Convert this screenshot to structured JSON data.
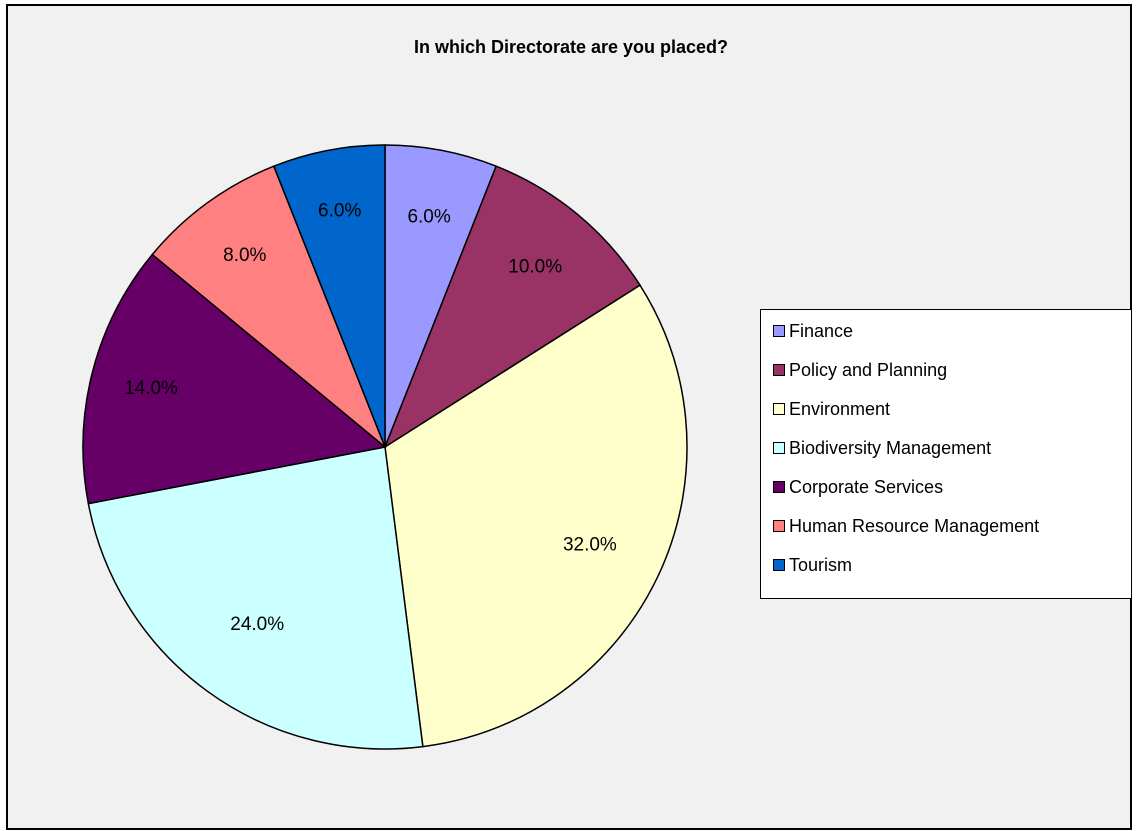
{
  "chart_data": {
    "type": "pie",
    "title": "In which Directorate are you placed?",
    "slices": [
      {
        "label": "Finance",
        "value": 6.0,
        "display": "6.0%",
        "color": "#9999ff"
      },
      {
        "label": "Policy and Planning",
        "value": 10.0,
        "display": "10.0%",
        "color": "#993366"
      },
      {
        "label": "Environment",
        "value": 32.0,
        "display": "32.0%",
        "color": "#ffffcc"
      },
      {
        "label": "Biodiversity Management",
        "value": 24.0,
        "display": "24.0%",
        "color": "#ccffff"
      },
      {
        "label": "Corporate Services",
        "value": 14.0,
        "display": "14.0%",
        "color": "#660066"
      },
      {
        "label": "Human Resource Management",
        "value": 8.0,
        "display": "8.0%",
        "color": "#ff8080"
      },
      {
        "label": "Tourism",
        "value": 6.0,
        "display": "6.0%",
        "color": "#0066cc"
      }
    ],
    "legend_position": "right"
  }
}
